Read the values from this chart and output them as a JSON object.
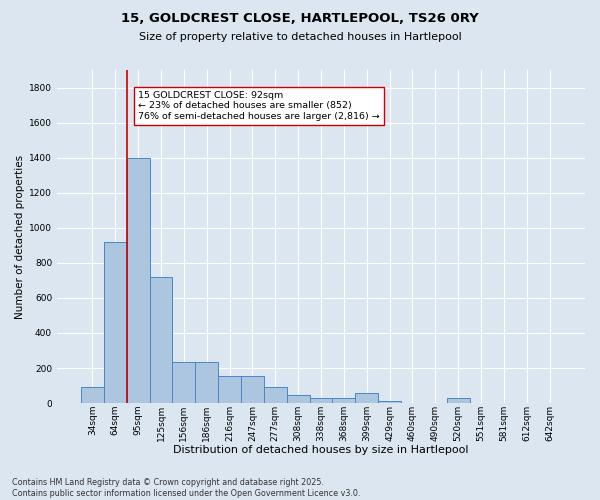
{
  "title": "15, GOLDCREST CLOSE, HARTLEPOOL, TS26 0RY",
  "subtitle": "Size of property relative to detached houses in Hartlepool",
  "xlabel": "Distribution of detached houses by size in Hartlepool",
  "ylabel": "Number of detached properties",
  "footer1": "Contains HM Land Registry data © Crown copyright and database right 2025.",
  "footer2": "Contains public sector information licensed under the Open Government Licence v3.0.",
  "annotation_line1": "15 GOLDCREST CLOSE: 92sqm",
  "annotation_line2": "← 23% of detached houses are smaller (852)",
  "annotation_line3": "76% of semi-detached houses are larger (2,816) →",
  "categories": [
    "34sqm",
    "64sqm",
    "95sqm",
    "125sqm",
    "156sqm",
    "186sqm",
    "216sqm",
    "247sqm",
    "277sqm",
    "308sqm",
    "338sqm",
    "368sqm",
    "399sqm",
    "429sqm",
    "460sqm",
    "490sqm",
    "520sqm",
    "551sqm",
    "581sqm",
    "612sqm",
    "642sqm"
  ],
  "values": [
    90,
    920,
    1400,
    720,
    235,
    235,
    155,
    155,
    90,
    45,
    30,
    30,
    60,
    10,
    0,
    0,
    30,
    0,
    0,
    0,
    0
  ],
  "bar_color": "#adc6e0",
  "bar_edge_color": "#4a86c8",
  "vline_color": "#cc0000",
  "vline_x": 1.5,
  "annotation_box_edgecolor": "#cc0000",
  "background_color": "#dce6f1",
  "ylim": [
    0,
    1900
  ],
  "yticks": [
    0,
    200,
    400,
    600,
    800,
    1000,
    1200,
    1400,
    1600,
    1800
  ],
  "grid_color": "#ffffff",
  "title_fontsize": 9.5,
  "subtitle_fontsize": 8,
  "xlabel_fontsize": 8,
  "ylabel_fontsize": 7.5,
  "tick_fontsize": 6.5,
  "annotation_fontsize": 6.8,
  "footer_fontsize": 5.8
}
